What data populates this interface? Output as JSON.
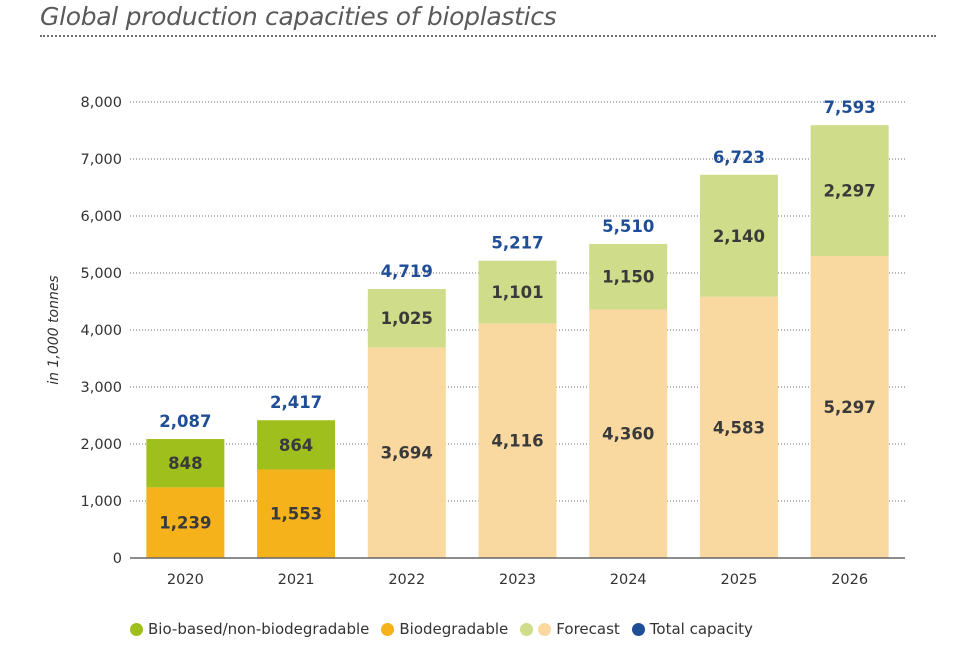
{
  "title": "Global production capacities of bioplastics",
  "chart_data": {
    "type": "bar",
    "stacked": true,
    "categories": [
      "2020",
      "2021",
      "2022",
      "2023",
      "2024",
      "2025",
      "2026"
    ],
    "forecast_from": "2022",
    "series": [
      {
        "name": "Biodegradable",
        "values": [
          1239,
          1553,
          3694,
          4116,
          4360,
          4583,
          5297
        ],
        "labels": [
          "1,239",
          "1,553",
          "3,694",
          "4,116",
          "4,360",
          "4,583",
          "5,297"
        ],
        "color": "#f5b21b",
        "forecast_color": "#fad9a0"
      },
      {
        "name": "Bio-based/non-biodegradable",
        "values": [
          848,
          864,
          1025,
          1101,
          1150,
          2140,
          2297
        ],
        "labels": [
          "848",
          "864",
          "1,025",
          "1,101",
          "1,150",
          "2,140",
          "2,297"
        ],
        "color": "#9fbf1c",
        "forecast_color": "#cfdc8a"
      }
    ],
    "totals": [
      2087,
      2417,
      4719,
      5217,
      5510,
      6723,
      7593
    ],
    "total_labels": [
      "2,087",
      "2,417",
      "4,719",
      "5,217",
      "5,510",
      "6,723",
      "7,593"
    ],
    "ylabel": "in 1,000 tonnes",
    "ylim": [
      0,
      8000
    ],
    "yticks": [
      0,
      1000,
      2000,
      3000,
      4000,
      5000,
      6000,
      7000,
      8000
    ],
    "ytick_labels": [
      "0",
      "1,000",
      "2,000",
      "3,000",
      "4,000",
      "5,000",
      "6,000",
      "7,000",
      "8,000"
    ],
    "grid": true,
    "legend_position": "bottom"
  },
  "legend": {
    "bio_based": "Bio-based/non-biodegradable",
    "biodegradable": "Biodegradable",
    "forecast": "Forecast",
    "total": "Total capacity"
  },
  "colors": {
    "bio_based": "#9fbf1c",
    "biodegradable": "#f5b21b",
    "forecast_bio_based": "#cfdc8a",
    "forecast_biodegradable": "#fad9a0",
    "total": "#1f4e96"
  }
}
